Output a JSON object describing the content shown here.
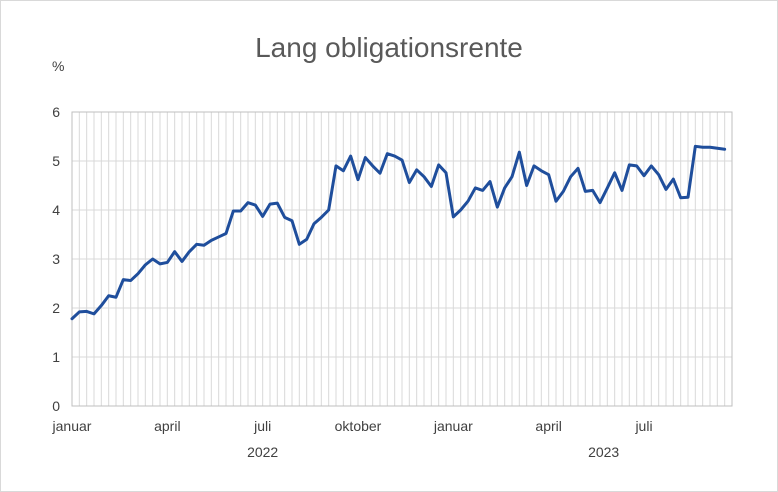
{
  "chart_data": {
    "type": "line",
    "title": "Lang obligationsrente",
    "ylabel": "%",
    "ylim": [
      0,
      6
    ],
    "yticks": [
      "0",
      "1",
      "2",
      "3",
      "4",
      "5",
      "6"
    ],
    "grid": "vertical-weekly",
    "x_month_labels": [
      {
        "label": "januar",
        "week": 0
      },
      {
        "label": "april",
        "week": 13
      },
      {
        "label": "juli",
        "week": 26
      },
      {
        "label": "oktober",
        "week": 39
      },
      {
        "label": "januar",
        "week": 52
      },
      {
        "label": "april",
        "week": 65
      },
      {
        "label": "juli",
        "week": 78
      }
    ],
    "x_year_labels": [
      {
        "label": "2022",
        "week": 26
      },
      {
        "label": "2023",
        "week": 72.5
      }
    ],
    "x_weeks": 90,
    "series": [
      {
        "color": "#1f4e9c",
        "values": [
          1.78,
          1.92,
          1.93,
          1.88,
          2.05,
          2.25,
          2.22,
          2.58,
          2.56,
          2.7,
          2.88,
          3.0,
          2.9,
          2.93,
          3.15,
          2.95,
          3.15,
          3.3,
          3.28,
          3.38,
          3.45,
          3.52,
          3.98,
          3.98,
          4.15,
          4.1,
          3.87,
          4.12,
          4.14,
          3.85,
          3.78,
          3.3,
          3.4,
          3.72,
          3.85,
          4.0,
          4.9,
          4.8,
          5.1,
          4.62,
          5.07,
          4.9,
          4.75,
          5.15,
          5.1,
          5.02,
          4.56,
          4.82,
          4.68,
          4.48,
          4.92,
          4.76,
          3.86,
          4.0,
          4.18,
          4.45,
          4.4,
          4.58,
          4.06,
          4.45,
          4.68,
          5.18,
          4.5,
          4.9,
          4.8,
          4.72,
          4.18,
          4.38,
          4.68,
          4.85,
          4.38,
          4.4,
          4.15,
          4.45,
          4.76,
          4.4,
          4.92,
          4.9,
          4.7,
          4.9,
          4.72,
          4.42,
          4.63,
          4.25,
          4.26,
          5.3,
          5.28,
          5.28,
          5.26,
          5.24
        ]
      }
    ]
  }
}
